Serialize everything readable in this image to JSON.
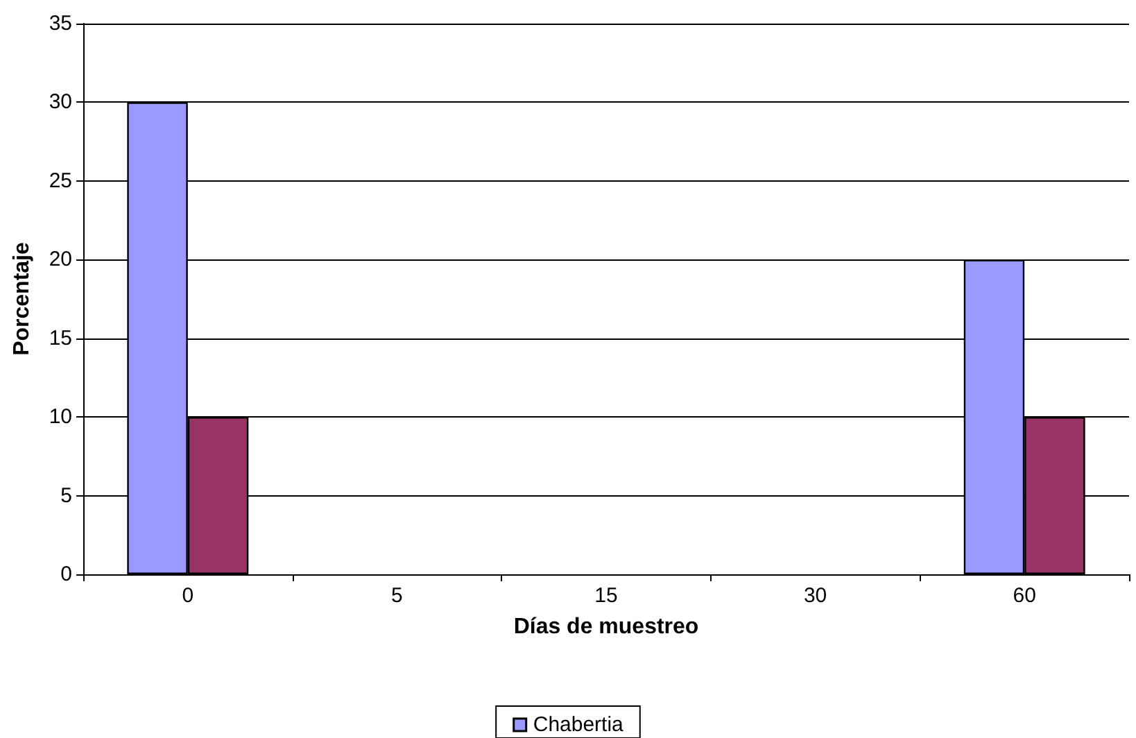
{
  "chart_data": {
    "type": "bar",
    "xlabel": "Días de muestreo",
    "ylabel": "Porcentaje",
    "categories": [
      "0",
      "5",
      "15",
      "30",
      "60"
    ],
    "series": [
      {
        "name": "Chabertia",
        "color": "#9999ff",
        "values": [
          30,
          0,
          0,
          0,
          20
        ]
      },
      {
        "color": "#993366",
        "values": [
          10,
          0,
          0,
          0,
          10
        ]
      }
    ],
    "ylim": [
      0,
      35
    ],
    "yticks": [
      0,
      5,
      10,
      15,
      20,
      25,
      30,
      35
    ],
    "grid": "y",
    "legend": "bottom"
  }
}
